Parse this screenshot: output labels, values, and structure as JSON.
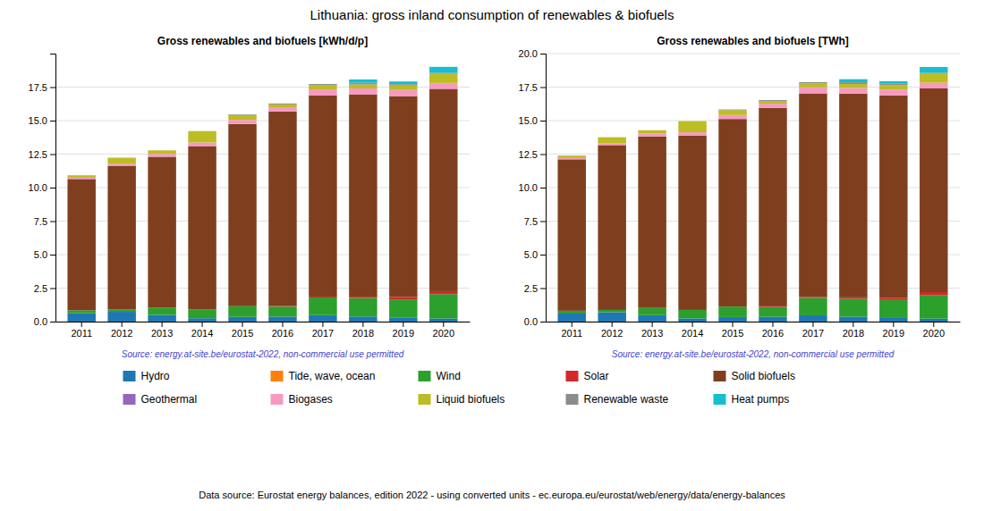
{
  "title": "Lithuania: gross inland consumption of renewables & biofuels",
  "annotations": [
    "Data source: Eurostat energy balances, edition 2022 - using converted units - ec.europa.eu/eurostat/web/energy/data/energy-balances"
  ],
  "chart_data": [
    {
      "type": "bar",
      "stacked": true,
      "grid": true,
      "legend": "bottom",
      "title": "Gross renewables and biofuels [kWh/d/p]",
      "annotations": [
        "Source: energy.at-site.be/eurostat-2022, non-commercial use permitted"
      ],
      "categories": [
        "2011",
        "2012",
        "2013",
        "2014",
        "2015",
        "2016",
        "2017",
        "2018",
        "2019",
        "2020"
      ],
      "series": [
        {
          "name": "Hydro",
          "color": "#1f77b4",
          "values": [
            0.62,
            0.73,
            0.5,
            0.25,
            0.35,
            0.37,
            0.48,
            0.38,
            0.28,
            0.23
          ]
        },
        {
          "name": "Tide, wave, ocean",
          "color": "#ff7f0e",
          "values": [
            0.0,
            0.0,
            0.0,
            0.0,
            0.0,
            0.0,
            0.0,
            0.0,
            0.0,
            0.0
          ]
        },
        {
          "name": "Wind",
          "color": "#2ca02c",
          "values": [
            0.22,
            0.18,
            0.55,
            0.65,
            0.8,
            0.75,
            1.32,
            1.38,
            1.38,
            1.82
          ]
        },
        {
          "name": "Solar",
          "color": "#d62728",
          "values": [
            0.0,
            0.0,
            0.0,
            0.0,
            0.0,
            0.05,
            0.07,
            0.1,
            0.17,
            0.22
          ]
        },
        {
          "name": "Solid biofuels",
          "color": "#7f3f1f",
          "values": [
            9.8,
            10.72,
            11.25,
            12.2,
            13.6,
            14.5,
            15.0,
            15.1,
            15.0,
            15.1
          ]
        },
        {
          "name": "Geothermal",
          "color": "#9467bd",
          "values": [
            0.0,
            0.0,
            0.0,
            0.0,
            0.0,
            0.0,
            0.0,
            0.0,
            0.0,
            0.0
          ]
        },
        {
          "name": "Biogases",
          "color": "#f799c0",
          "values": [
            0.1,
            0.15,
            0.22,
            0.27,
            0.3,
            0.33,
            0.46,
            0.44,
            0.45,
            0.44
          ]
        },
        {
          "name": "Liquid biofuels",
          "color": "#bcbd22",
          "values": [
            0.18,
            0.45,
            0.26,
            0.85,
            0.37,
            0.21,
            0.3,
            0.3,
            0.34,
            0.68
          ]
        },
        {
          "name": "Renewable waste",
          "color": "#8c8c8c",
          "values": [
            0.0,
            0.0,
            0.0,
            0.0,
            0.05,
            0.07,
            0.1,
            0.13,
            0.1,
            0.08
          ]
        },
        {
          "name": "Heat pumps",
          "color": "#17becf",
          "values": [
            0.0,
            0.0,
            0.0,
            0.0,
            0.0,
            0.0,
            0.0,
            0.24,
            0.2,
            0.44
          ]
        }
      ],
      "ylim": [
        0,
        20
      ],
      "yticks": [
        {
          "value": 0.0,
          "label": "0.0"
        },
        2.5,
        {
          "value": 5.0,
          "label": "5.0"
        },
        7.5,
        {
          "value": 10.0,
          "label": "10.0"
        },
        12.5,
        {
          "value": 15.0,
          "label": "15.0"
        },
        17.5
      ]
    },
    {
      "type": "bar",
      "stacked": true,
      "grid": true,
      "legend": "bottom",
      "title": "Gross renewables and biofuels [TWh]",
      "annotations": [
        "Source: energy.at-site.be/eurostat-2022, non-commercial use permitted"
      ],
      "categories": [
        "2011",
        "2012",
        "2013",
        "2014",
        "2015",
        "2016",
        "2017",
        "2018",
        "2019",
        "2020"
      ],
      "series": [
        {
          "name": "Hydro",
          "color": "#1f77b4",
          "values": [
            0.6,
            0.7,
            0.48,
            0.24,
            0.34,
            0.36,
            0.47,
            0.37,
            0.27,
            0.22
          ]
        },
        {
          "name": "Tide, wave, ocean",
          "color": "#ff7f0e",
          "values": [
            0.0,
            0.0,
            0.0,
            0.0,
            0.0,
            0.0,
            0.0,
            0.0,
            0.0,
            0.0
          ]
        },
        {
          "name": "Wind",
          "color": "#2ca02c",
          "values": [
            0.21,
            0.17,
            0.54,
            0.63,
            0.78,
            0.73,
            1.29,
            1.34,
            1.34,
            1.77
          ]
        },
        {
          "name": "Solar",
          "color": "#d62728",
          "values": [
            0.0,
            0.0,
            0.0,
            0.0,
            0.0,
            0.05,
            0.07,
            0.1,
            0.17,
            0.21
          ]
        },
        {
          "name": "Solid biofuels",
          "color": "#7f3f1f",
          "values": [
            11.3,
            12.3,
            12.8,
            13.0,
            14.0,
            14.8,
            15.2,
            15.2,
            15.1,
            15.2
          ]
        },
        {
          "name": "Geothermal",
          "color": "#9467bd",
          "values": [
            0.0,
            0.0,
            0.0,
            0.0,
            0.0,
            0.0,
            0.0,
            0.0,
            0.0,
            0.0
          ]
        },
        {
          "name": "Biogases",
          "color": "#f799c0",
          "values": [
            0.1,
            0.15,
            0.21,
            0.26,
            0.3,
            0.32,
            0.45,
            0.43,
            0.44,
            0.43
          ]
        },
        {
          "name": "Liquid biofuels",
          "color": "#bcbd22",
          "values": [
            0.18,
            0.44,
            0.25,
            0.83,
            0.36,
            0.2,
            0.29,
            0.29,
            0.33,
            0.66
          ]
        },
        {
          "name": "Renewable waste",
          "color": "#8c8c8c",
          "values": [
            0.0,
            0.0,
            0.0,
            0.0,
            0.05,
            0.07,
            0.1,
            0.13,
            0.1,
            0.08
          ]
        },
        {
          "name": "Heat pumps",
          "color": "#17becf",
          "values": [
            0.0,
            0.0,
            0.0,
            0.0,
            0.0,
            0.0,
            0.0,
            0.23,
            0.19,
            0.43
          ]
        }
      ],
      "ylim": [
        0,
        20
      ],
      "yticks": [
        {
          "value": 0.0,
          "label": "0.0"
        },
        2.5,
        {
          "value": 5.0,
          "label": "5.0"
        },
        7.5,
        {
          "value": 10.0,
          "label": "10.0"
        },
        12.5,
        {
          "value": 15.0,
          "label": "15.0"
        },
        17.5,
        {
          "value": 20.0,
          "label": "20.0"
        }
      ]
    }
  ]
}
